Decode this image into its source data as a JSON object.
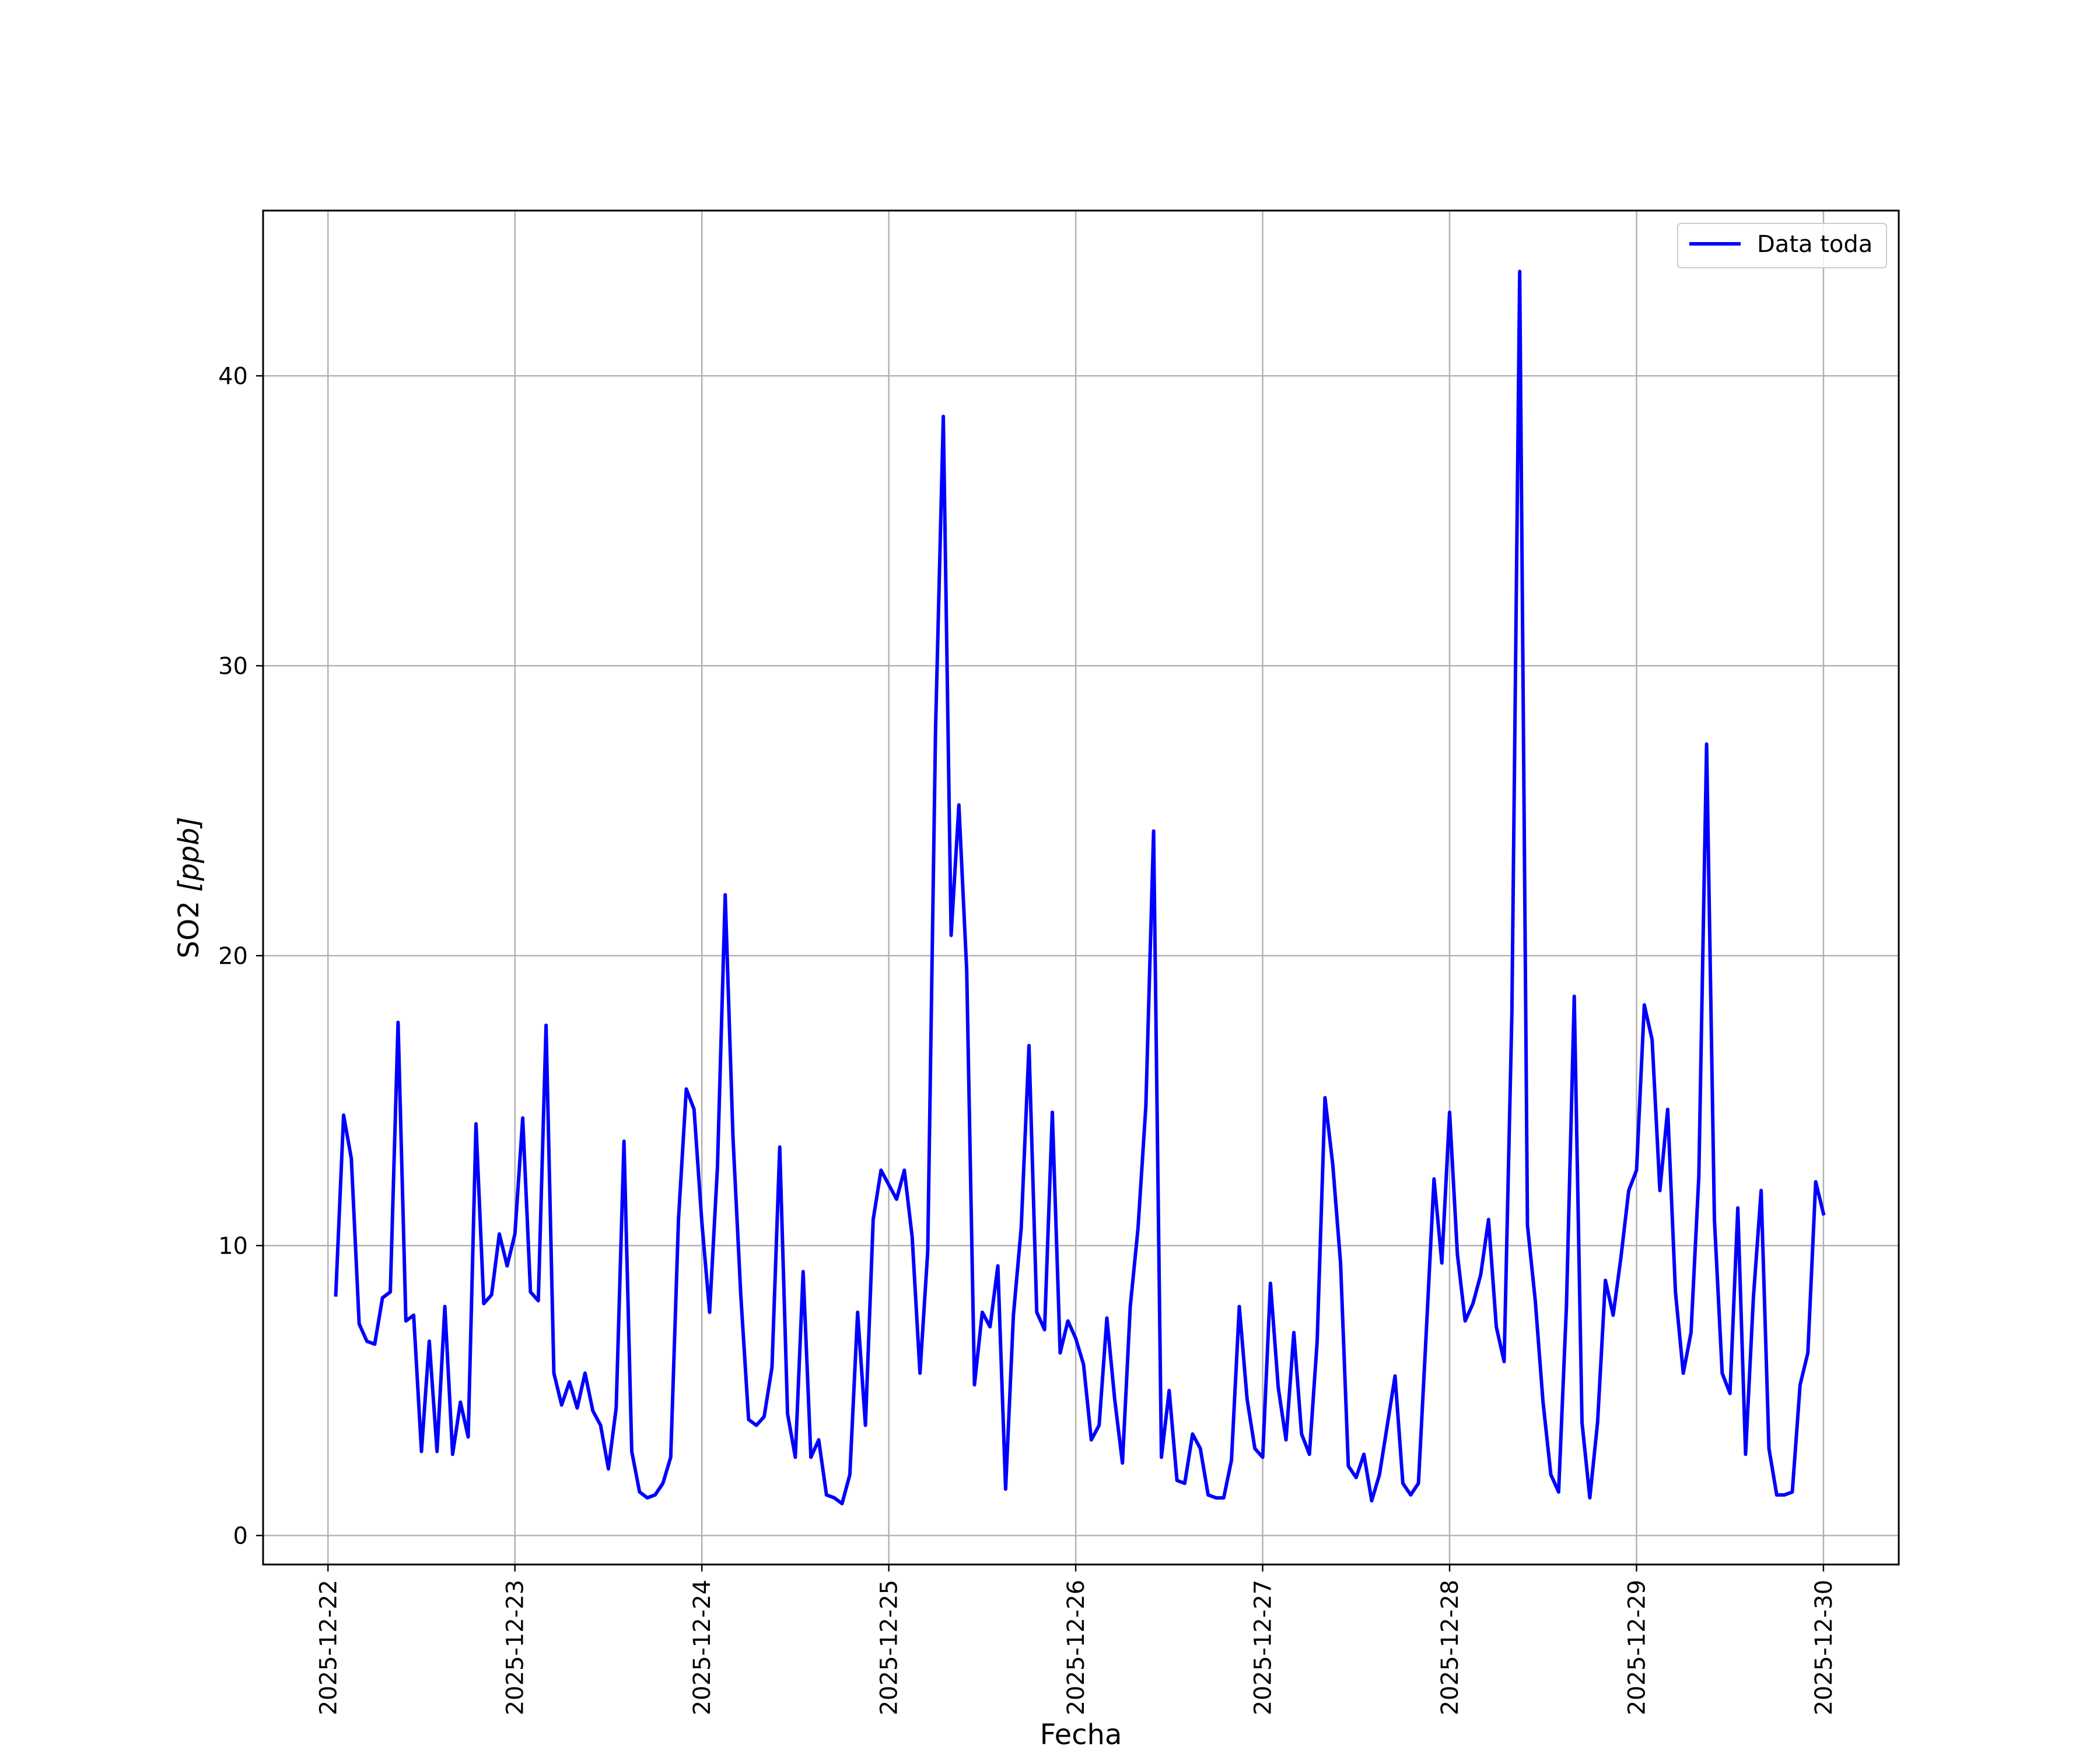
{
  "chart_data": {
    "type": "line",
    "title": "",
    "xlabel": "Fecha",
    "ylabel_main": "SO2 ",
    "ylabel_unit": "[ppb]",
    "x_ticks": [
      "2025-12-22",
      "2025-12-23",
      "2025-12-24",
      "2025-12-25",
      "2025-12-26",
      "2025-12-27",
      "2025-12-28",
      "2025-12-29",
      "2025-12-30"
    ],
    "y_ticks": [
      "0",
      "10",
      "20",
      "30",
      "40"
    ],
    "xlim": [
      "2025-12-21T15:40",
      "2025-12-30T09:40"
    ],
    "ylim": [
      -1,
      45.7
    ],
    "grid": true,
    "legend_position": "top-right",
    "colors": {
      "series": "#0000ff",
      "grid": "#b0b0b0",
      "axes": "#000000"
    },
    "series": [
      {
        "name": "Data toda",
        "sampling": "every 1 hour from 2025-12-22T01:00",
        "values": [
          8.3,
          14.5,
          13.0,
          7.3,
          6.7,
          6.6,
          8.2,
          8.4,
          17.7,
          7.4,
          7.6,
          2.9,
          6.7,
          2.9,
          7.9,
          2.8,
          4.6,
          3.4,
          14.2,
          8.0,
          8.3,
          10.4,
          9.3,
          10.4,
          14.4,
          8.4,
          8.1,
          17.6,
          5.6,
          4.5,
          5.3,
          4.4,
          5.6,
          4.3,
          3.8,
          2.3,
          4.4,
          13.6,
          2.9,
          1.5,
          1.3,
          1.4,
          1.8,
          2.7,
          10.9,
          15.4,
          14.7,
          10.8,
          7.7,
          12.7,
          22.1,
          13.7,
          8.3,
          4.0,
          3.8,
          4.1,
          5.8,
          13.4,
          4.2,
          2.7,
          9.1,
          2.7,
          3.3,
          1.4,
          1.3,
          1.1,
          2.1,
          7.7,
          3.8,
          10.9,
          12.6,
          12.1,
          11.6,
          12.6,
          10.3,
          5.6,
          9.8,
          27.8,
          38.6,
          20.7,
          25.2,
          19.5,
          5.2,
          7.7,
          7.2,
          9.3,
          1.6,
          7.6,
          10.6,
          16.9,
          7.7,
          7.1,
          14.6,
          6.3,
          7.4,
          6.8,
          5.9,
          3.3,
          3.8,
          7.5,
          4.7,
          2.5,
          7.9,
          10.6,
          14.8,
          24.3,
          2.7,
          5.0,
          1.9,
          1.8,
          3.5,
          3.0,
          1.4,
          1.3,
          1.3,
          2.6,
          7.9,
          4.7,
          3.0,
          2.7,
          8.7,
          5.1,
          3.3,
          7.0,
          3.5,
          2.8,
          6.7,
          15.1,
          12.8,
          9.4,
          2.4,
          2.0,
          2.8,
          1.2,
          2.1,
          3.8,
          5.5,
          1.8,
          1.4,
          1.8,
          7.0,
          12.3,
          9.4,
          14.6,
          9.7,
          7.4,
          8.0,
          9.0,
          10.9,
          7.2,
          6.0,
          18.0,
          43.6,
          10.7,
          8.1,
          4.6,
          2.1,
          1.5,
          7.9,
          18.6,
          3.9,
          1.3,
          3.9,
          8.8,
          7.6,
          9.6,
          11.9,
          12.6,
          18.3,
          17.1,
          11.9,
          14.7,
          8.4,
          5.6,
          7.0,
          12.4,
          27.3,
          10.9,
          5.6,
          4.9,
          11.3,
          2.8,
          8.2,
          11.9,
          3.0,
          1.4,
          1.4,
          1.5,
          5.2,
          6.3,
          12.2,
          11.1
        ]
      }
    ]
  }
}
